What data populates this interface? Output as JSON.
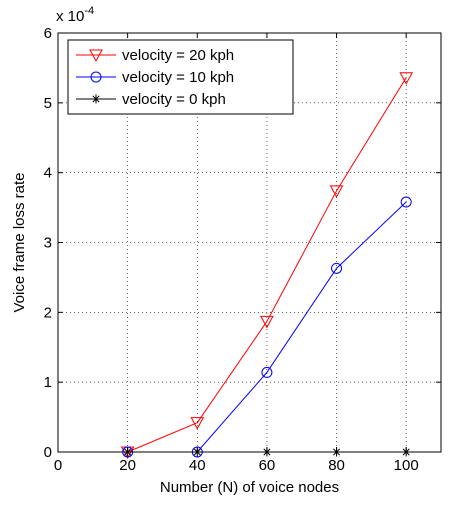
{
  "chart_data": {
    "type": "line",
    "xlabel": "Number (N) of voice nodes",
    "ylabel": "Voice frame loss rate",
    "y_exponent_label": "x 10",
    "y_exponent": "-4",
    "xlim": [
      0,
      110
    ],
    "ylim": [
      0,
      6
    ],
    "x_ticks": [
      0,
      20,
      40,
      60,
      80,
      100
    ],
    "y_ticks": [
      0,
      1,
      2,
      3,
      4,
      5,
      6
    ],
    "grid": "dotted",
    "legend_position": "top-left",
    "x": [
      20,
      40,
      60,
      80,
      100
    ],
    "series": [
      {
        "name": "velocity = 20 kph",
        "values": [
          0,
          0.42,
          1.87,
          3.74,
          5.36
        ],
        "color": "#ff0000",
        "marker": "triangle-down"
      },
      {
        "name": "velocity = 10 kph",
        "values": [
          0,
          0,
          1.14,
          2.63,
          3.58
        ],
        "color": "#0000ff",
        "marker": "circle"
      },
      {
        "name": "velocity = 0 kph",
        "values": [
          0,
          0,
          0,
          0,
          0
        ],
        "color": "#000000",
        "marker": "asterisk"
      }
    ]
  }
}
